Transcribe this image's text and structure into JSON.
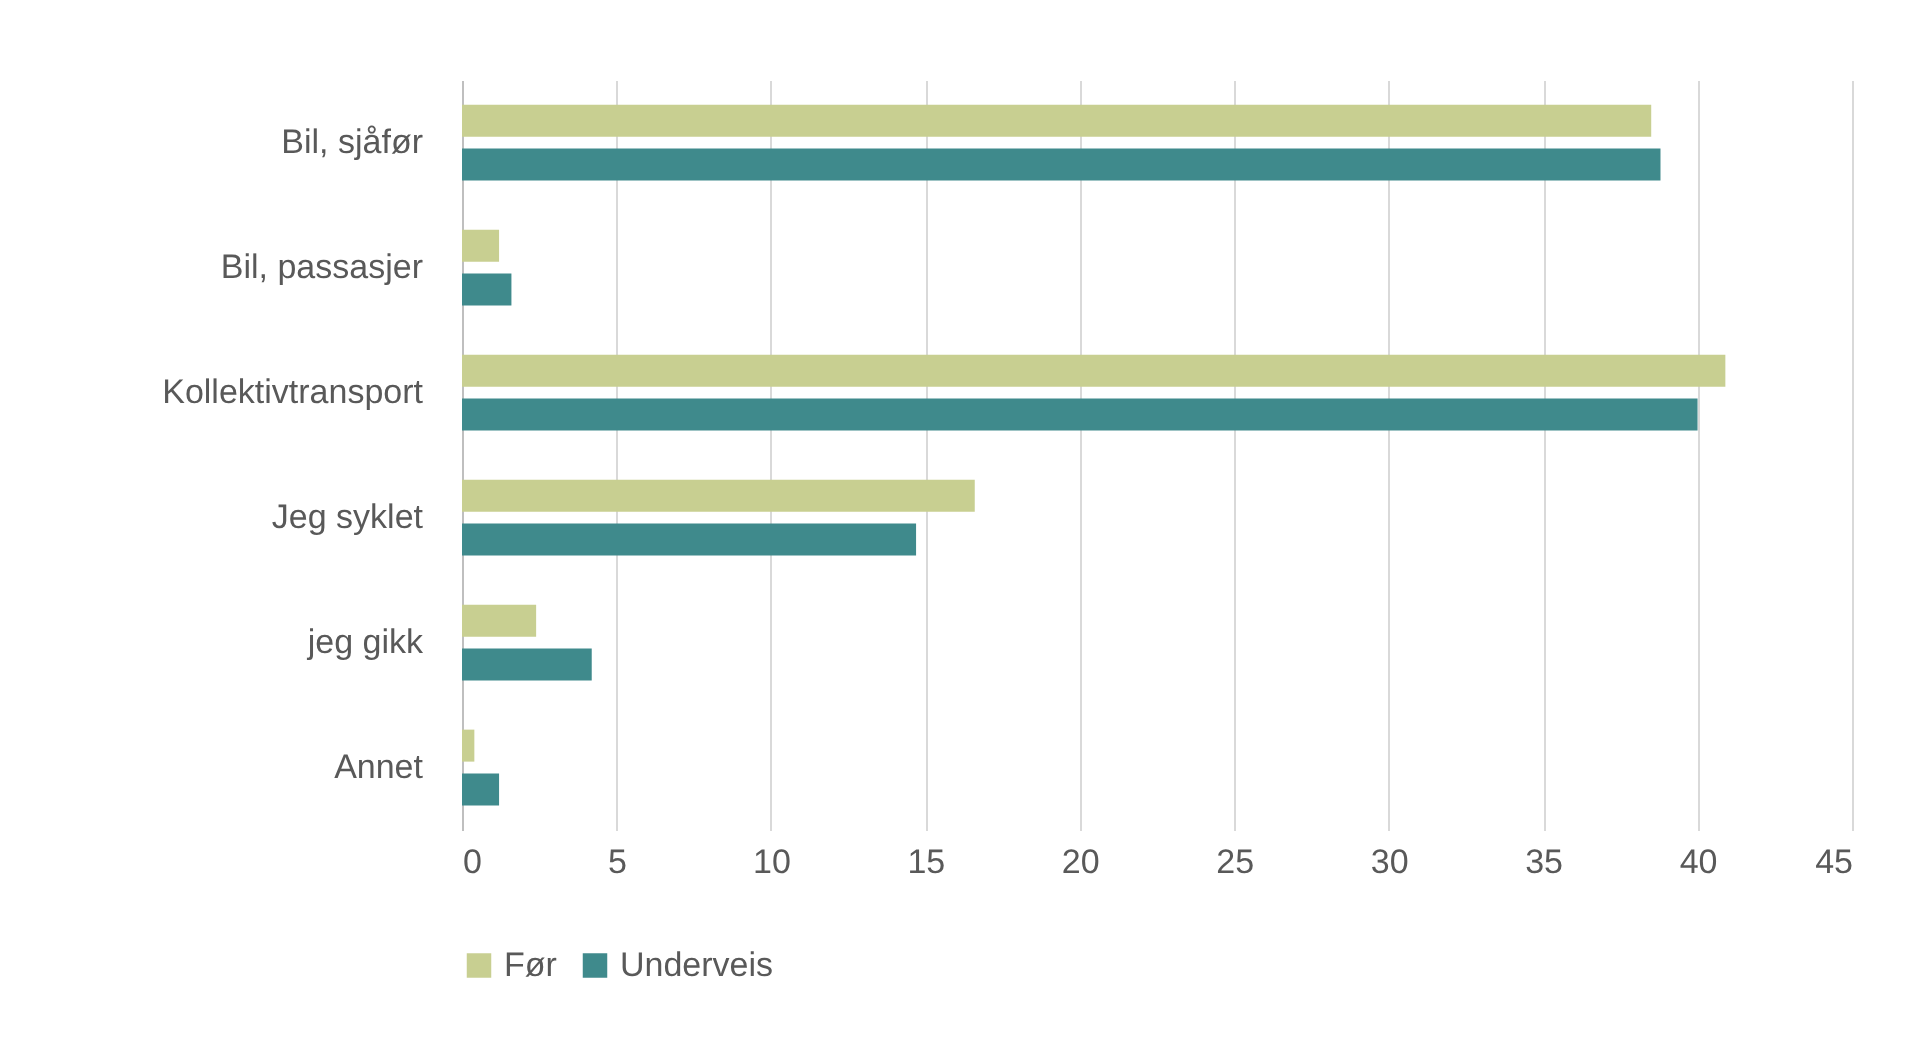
{
  "chart_data": {
    "type": "bar",
    "orientation": "horizontal",
    "categories": [
      "Bil, sjåfør",
      "Bil, passasjer",
      "Kollektivtransport",
      "Jeg syklet",
      "jeg gikk",
      "Annet"
    ],
    "series": [
      {
        "name": "Før",
        "color": "#c8cf91",
        "values": [
          38.5,
          1.2,
          40.9,
          16.6,
          2.4,
          0.4
        ]
      },
      {
        "name": "Underveis",
        "color": "#3f8a8c",
        "values": [
          38.8,
          1.6,
          40.0,
          14.7,
          4.2,
          1.2
        ]
      }
    ],
    "xlim": [
      0,
      45
    ],
    "xticks": [
      0,
      5,
      10,
      15,
      20,
      25,
      30,
      35,
      40,
      45
    ],
    "grid": "x",
    "legend": "bottom"
  }
}
